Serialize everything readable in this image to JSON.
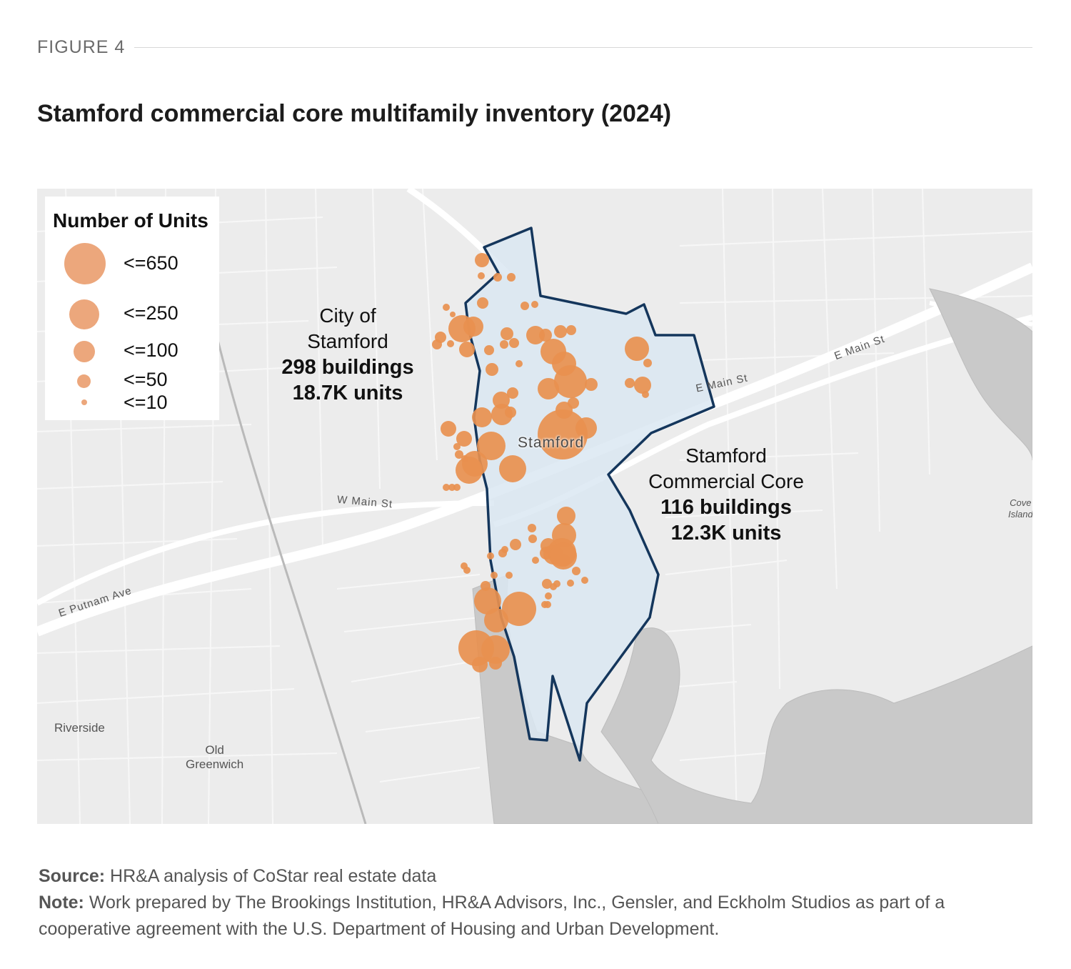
{
  "figure_label": "FIGURE 4",
  "title": "Stamford commercial core multifamily inventory (2024)",
  "legend": {
    "title": "Number of Units",
    "items": [
      {
        "label": "<=650",
        "max_units": 650
      },
      {
        "label": "<=250",
        "max_units": 250
      },
      {
        "label": "<=100",
        "max_units": 100
      },
      {
        "label": "<=50",
        "max_units": 50
      },
      {
        "label": "<=10",
        "max_units": 10
      }
    ]
  },
  "annotations": {
    "city": {
      "line1": "City of",
      "line2": "Stamford",
      "buildings": "298 buildings",
      "units": "18.7K units"
    },
    "core": {
      "line1": "Stamford",
      "line2": "Commercial Core",
      "buildings": "116 buildings",
      "units": "12.3K units"
    }
  },
  "map_labels": {
    "city_center": "Stamford",
    "e_main_st_1": "E Main St",
    "e_main_st_2": "E Main St",
    "w_main_st": "W Main St",
    "e_putnam_ave": "E Putnam Ave",
    "riverside": "Riverside",
    "old_greenwich_1": "Old",
    "old_greenwich_2": "Greenwich",
    "cove_island_1": "Cove",
    "cove_island_2": "Island"
  },
  "colors": {
    "marker": "#e8904f",
    "legend_marker": "#eca77c",
    "boundary_stroke": "#14365c",
    "boundary_fill": "#dbe8f2",
    "water": "#c9c9c9",
    "land": "#ececec"
  },
  "footer": {
    "source_label": "Source:",
    "source_text": "HR&A analysis of CoStar real estate data",
    "note_label": "Note:",
    "note_text": "Work prepared by The Brookings Institution, HR&A Advisors, Inc., Gensler, and Eckholm Studios as part of a cooperative agreement with the U.S. Department of Housing and Urban Development."
  }
}
